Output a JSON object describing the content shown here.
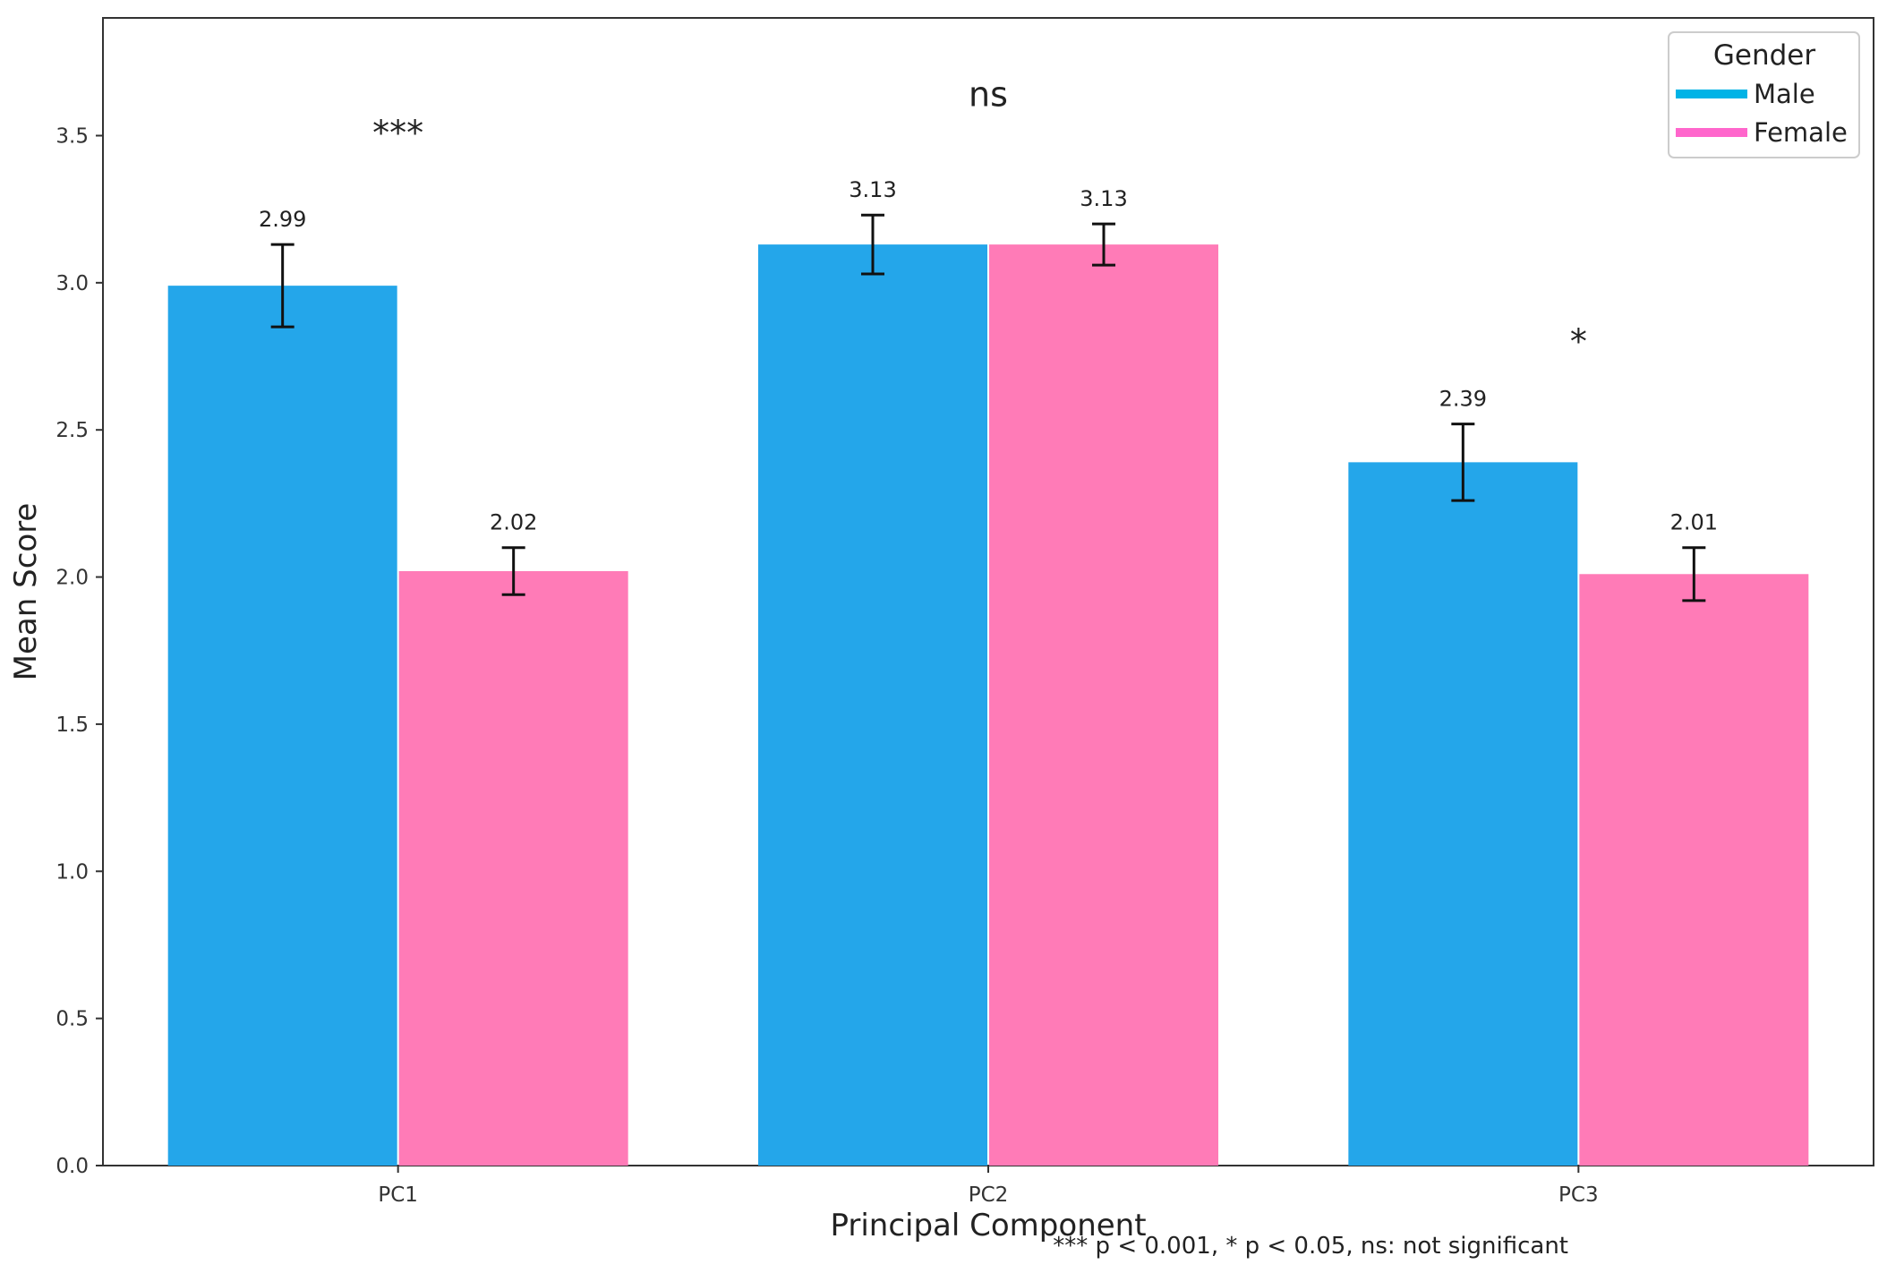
{
  "chart_data": {
    "type": "bar",
    "categories": [
      "PC1",
      "PC2",
      "PC3"
    ],
    "series": [
      {
        "name": "Male",
        "color": "#24a6ea",
        "values": [
          2.99,
          3.13,
          2.39
        ],
        "errors": [
          0.14,
          0.1,
          0.13
        ]
      },
      {
        "name": "Female",
        "color": "#ff7bb7",
        "values": [
          2.02,
          3.13,
          2.01
        ],
        "errors": [
          0.08,
          0.07,
          0.09
        ]
      }
    ],
    "data_labels": [
      {
        "category": "PC1",
        "series": "Male",
        "text": "2.99"
      },
      {
        "category": "PC1",
        "series": "Female",
        "text": "2.02"
      },
      {
        "category": "PC2",
        "series": "Male",
        "text": "3.13"
      },
      {
        "category": "PC2",
        "series": "Female",
        "text": "3.13"
      },
      {
        "category": "PC3",
        "series": "Male",
        "text": "2.39"
      },
      {
        "category": "PC3",
        "series": "Female",
        "text": "2.01"
      }
    ],
    "significance": [
      {
        "category": "PC1",
        "text": "***",
        "y": 3.47
      },
      {
        "category": "PC2",
        "text": "ns",
        "y": 3.6
      },
      {
        "category": "PC3",
        "text": "*",
        "y": 2.76
      }
    ],
    "xlabel": "Principal Component",
    "ylabel": "Mean Score",
    "ylim": [
      0,
      3.9
    ],
    "yticks": [
      "0.0",
      "0.5",
      "1.0",
      "1.5",
      "2.0",
      "2.5",
      "3.0",
      "3.5"
    ],
    "ytick_values": [
      0.0,
      0.5,
      1.0,
      1.5,
      2.0,
      2.5,
      3.0,
      3.5
    ],
    "legend": {
      "title": "Gender",
      "position": "top-right",
      "entries": [
        "Male",
        "Female"
      ],
      "colors": [
        "#00b3e6",
        "#ff66cc"
      ]
    },
    "footnote": "*** p < 0.001, * p < 0.05, ns: not significant",
    "grid": false
  }
}
